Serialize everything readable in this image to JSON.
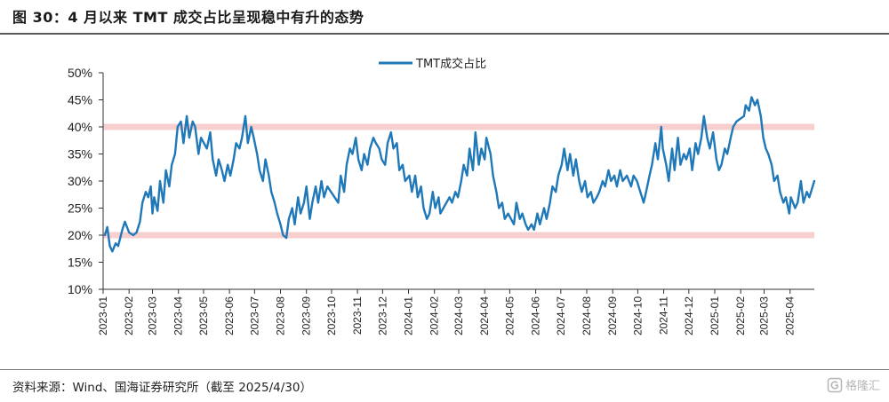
{
  "header": {
    "title": "图 30：4 月以来 TMT 成交占比呈现稳中有升的态势"
  },
  "footer": {
    "source": "资料来源：Wind、国海证券研究所（截至 2025/4/30）",
    "watermark": "格隆汇",
    "watermark_icon": "gelonghui-logo-icon"
  },
  "chart_data": {
    "type": "line",
    "title": "",
    "xlabel": "",
    "ylabel": "",
    "ylim": [
      0.1,
      0.5
    ],
    "y_ticks": [
      "10%",
      "15%",
      "20%",
      "25%",
      "30%",
      "35%",
      "40%",
      "45%",
      "50%"
    ],
    "y_tick_values": [
      0.1,
      0.15,
      0.2,
      0.25,
      0.3,
      0.35,
      0.4,
      0.45,
      0.5
    ],
    "x_range": [
      "2023-01-01",
      "2025-04-30"
    ],
    "x_ticks": [
      "2023-01",
      "2023-02",
      "2023-03",
      "2023-04",
      "2023-05",
      "2023-06",
      "2023-07",
      "2023-08",
      "2023-09",
      "2023-10",
      "2023-11",
      "2023-12",
      "2024-01",
      "2024-02",
      "2024-03",
      "2024-04",
      "2024-05",
      "2024-06",
      "2024-07",
      "2024-08",
      "2024-09",
      "2024-10",
      "2024-11",
      "2024-12",
      "2025-01",
      "2025-02",
      "2025-03",
      "2025-04"
    ],
    "grid": false,
    "legend_position": "top-center",
    "reference_lines": [
      {
        "value": 0.4,
        "color": "#f7cfcf"
      },
      {
        "value": 0.2,
        "color": "#f7cfcf"
      }
    ],
    "series": [
      {
        "name": "TMT成交占比",
        "color": "#1f78b8",
        "points": [
          [
            "2023-01-03",
            0.2
          ],
          [
            "2023-01-06",
            0.215
          ],
          [
            "2023-01-09",
            0.18
          ],
          [
            "2023-01-12",
            0.17
          ],
          [
            "2023-01-16",
            0.185
          ],
          [
            "2023-01-19",
            0.18
          ],
          [
            "2023-01-24",
            0.21
          ],
          [
            "2023-01-27",
            0.225
          ],
          [
            "2023-02-01",
            0.205
          ],
          [
            "2023-02-06",
            0.2
          ],
          [
            "2023-02-10",
            0.205
          ],
          [
            "2023-02-14",
            0.225
          ],
          [
            "2023-02-17",
            0.26
          ],
          [
            "2023-02-21",
            0.28
          ],
          [
            "2023-02-24",
            0.27
          ],
          [
            "2023-02-27",
            0.29
          ],
          [
            "2023-03-01",
            0.24
          ],
          [
            "2023-03-03",
            0.27
          ],
          [
            "2023-03-07",
            0.245
          ],
          [
            "2023-03-10",
            0.3
          ],
          [
            "2023-03-14",
            0.26
          ],
          [
            "2023-03-17",
            0.32
          ],
          [
            "2023-03-21",
            0.29
          ],
          [
            "2023-03-24",
            0.33
          ],
          [
            "2023-03-28",
            0.35
          ],
          [
            "2023-03-31",
            0.4
          ],
          [
            "2023-04-04",
            0.41
          ],
          [
            "2023-04-07",
            0.37
          ],
          [
            "2023-04-11",
            0.42
          ],
          [
            "2023-04-14",
            0.38
          ],
          [
            "2023-04-18",
            0.41
          ],
          [
            "2023-04-21",
            0.4
          ],
          [
            "2023-04-25",
            0.35
          ],
          [
            "2023-04-28",
            0.38
          ],
          [
            "2023-05-05",
            0.36
          ],
          [
            "2023-05-09",
            0.39
          ],
          [
            "2023-05-12",
            0.34
          ],
          [
            "2023-05-16",
            0.31
          ],
          [
            "2023-05-19",
            0.34
          ],
          [
            "2023-05-23",
            0.32
          ],
          [
            "2023-05-26",
            0.3
          ],
          [
            "2023-05-30",
            0.33
          ],
          [
            "2023-06-02",
            0.31
          ],
          [
            "2023-06-06",
            0.34
          ],
          [
            "2023-06-09",
            0.37
          ],
          [
            "2023-06-13",
            0.36
          ],
          [
            "2023-06-16",
            0.38
          ],
          [
            "2023-06-20",
            0.42
          ],
          [
            "2023-06-23",
            0.37
          ],
          [
            "2023-06-27",
            0.4
          ],
          [
            "2023-06-30",
            0.38
          ],
          [
            "2023-07-04",
            0.35
          ],
          [
            "2023-07-07",
            0.32
          ],
          [
            "2023-07-11",
            0.3
          ],
          [
            "2023-07-14",
            0.34
          ],
          [
            "2023-07-18",
            0.31
          ],
          [
            "2023-07-21",
            0.28
          ],
          [
            "2023-07-25",
            0.26
          ],
          [
            "2023-07-28",
            0.24
          ],
          [
            "2023-08-01",
            0.22
          ],
          [
            "2023-08-04",
            0.2
          ],
          [
            "2023-08-08",
            0.195
          ],
          [
            "2023-08-11",
            0.23
          ],
          [
            "2023-08-15",
            0.25
          ],
          [
            "2023-08-18",
            0.22
          ],
          [
            "2023-08-22",
            0.27
          ],
          [
            "2023-08-25",
            0.24
          ],
          [
            "2023-08-29",
            0.26
          ],
          [
            "2023-09-01",
            0.29
          ],
          [
            "2023-09-05",
            0.23
          ],
          [
            "2023-09-08",
            0.26
          ],
          [
            "2023-09-12",
            0.29
          ],
          [
            "2023-09-15",
            0.26
          ],
          [
            "2023-09-19",
            0.3
          ],
          [
            "2023-09-22",
            0.27
          ],
          [
            "2023-09-26",
            0.29
          ],
          [
            "2023-10-09",
            0.26
          ],
          [
            "2023-10-12",
            0.31
          ],
          [
            "2023-10-16",
            0.28
          ],
          [
            "2023-10-19",
            0.33
          ],
          [
            "2023-10-23",
            0.36
          ],
          [
            "2023-10-26",
            0.35
          ],
          [
            "2023-10-30",
            0.38
          ],
          [
            "2023-11-02",
            0.34
          ],
          [
            "2023-11-06",
            0.32
          ],
          [
            "2023-11-09",
            0.35
          ],
          [
            "2023-11-13",
            0.33
          ],
          [
            "2023-11-16",
            0.36
          ],
          [
            "2023-11-20",
            0.38
          ],
          [
            "2023-11-23",
            0.37
          ],
          [
            "2023-11-27",
            0.36
          ],
          [
            "2023-11-30",
            0.34
          ],
          [
            "2023-12-04",
            0.33
          ],
          [
            "2023-12-07",
            0.37
          ],
          [
            "2023-12-11",
            0.39
          ],
          [
            "2023-12-14",
            0.36
          ],
          [
            "2023-12-18",
            0.37
          ],
          [
            "2023-12-21",
            0.32
          ],
          [
            "2023-12-25",
            0.33
          ],
          [
            "2023-12-28",
            0.3
          ],
          [
            "2024-01-02",
            0.31
          ],
          [
            "2024-01-05",
            0.28
          ],
          [
            "2024-01-09",
            0.31
          ],
          [
            "2024-01-12",
            0.27
          ],
          [
            "2024-01-16",
            0.29
          ],
          [
            "2024-01-19",
            0.25
          ],
          [
            "2024-01-23",
            0.23
          ],
          [
            "2024-01-26",
            0.24
          ],
          [
            "2024-01-30",
            0.28
          ],
          [
            "2024-02-02",
            0.25
          ],
          [
            "2024-02-06",
            0.27
          ],
          [
            "2024-02-08",
            0.24
          ],
          [
            "2024-02-19",
            0.27
          ],
          [
            "2024-02-22",
            0.26
          ],
          [
            "2024-02-26",
            0.28
          ],
          [
            "2024-02-29",
            0.27
          ],
          [
            "2024-03-04",
            0.3
          ],
          [
            "2024-03-07",
            0.33
          ],
          [
            "2024-03-11",
            0.31
          ],
          [
            "2024-03-14",
            0.36
          ],
          [
            "2024-03-18",
            0.32
          ],
          [
            "2024-03-21",
            0.39
          ],
          [
            "2024-03-25",
            0.33
          ],
          [
            "2024-03-28",
            0.36
          ],
          [
            "2024-04-01",
            0.34
          ],
          [
            "2024-04-03",
            0.38
          ],
          [
            "2024-04-08",
            0.35
          ],
          [
            "2024-04-11",
            0.31
          ],
          [
            "2024-04-15",
            0.28
          ],
          [
            "2024-04-18",
            0.25
          ],
          [
            "2024-04-22",
            0.26
          ],
          [
            "2024-04-25",
            0.23
          ],
          [
            "2024-04-29",
            0.24
          ],
          [
            "2024-05-06",
            0.22
          ],
          [
            "2024-05-09",
            0.26
          ],
          [
            "2024-05-13",
            0.23
          ],
          [
            "2024-05-16",
            0.24
          ],
          [
            "2024-05-20",
            0.22
          ],
          [
            "2024-05-23",
            0.21
          ],
          [
            "2024-05-27",
            0.22
          ],
          [
            "2024-05-30",
            0.21
          ],
          [
            "2024-06-03",
            0.24
          ],
          [
            "2024-06-06",
            0.22
          ],
          [
            "2024-06-11",
            0.25
          ],
          [
            "2024-06-14",
            0.23
          ],
          [
            "2024-06-18",
            0.26
          ],
          [
            "2024-06-21",
            0.29
          ],
          [
            "2024-06-25",
            0.28
          ],
          [
            "2024-06-28",
            0.31
          ],
          [
            "2024-07-02",
            0.33
          ],
          [
            "2024-07-05",
            0.36
          ],
          [
            "2024-07-09",
            0.32
          ],
          [
            "2024-07-12",
            0.35
          ],
          [
            "2024-07-16",
            0.31
          ],
          [
            "2024-07-19",
            0.34
          ],
          [
            "2024-07-23",
            0.3
          ],
          [
            "2024-07-26",
            0.28
          ],
          [
            "2024-07-30",
            0.3
          ],
          [
            "2024-08-02",
            0.27
          ],
          [
            "2024-08-06",
            0.28
          ],
          [
            "2024-08-09",
            0.26
          ],
          [
            "2024-08-13",
            0.27
          ],
          [
            "2024-08-16",
            0.28
          ],
          [
            "2024-08-20",
            0.3
          ],
          [
            "2024-08-23",
            0.29
          ],
          [
            "2024-08-27",
            0.32
          ],
          [
            "2024-08-30",
            0.3
          ],
          [
            "2024-09-03",
            0.31
          ],
          [
            "2024-09-06",
            0.29
          ],
          [
            "2024-09-10",
            0.32
          ],
          [
            "2024-09-13",
            0.3
          ],
          [
            "2024-09-18",
            0.31
          ],
          [
            "2024-09-23",
            0.29
          ],
          [
            "2024-09-26",
            0.31
          ],
          [
            "2024-09-30",
            0.3
          ],
          [
            "2024-10-08",
            0.26
          ],
          [
            "2024-10-11",
            0.28
          ],
          [
            "2024-10-15",
            0.31
          ],
          [
            "2024-10-18",
            0.33
          ],
          [
            "2024-10-22",
            0.37
          ],
          [
            "2024-10-25",
            0.34
          ],
          [
            "2024-10-29",
            0.4
          ],
          [
            "2024-10-31",
            0.36
          ],
          [
            "2024-11-04",
            0.33
          ],
          [
            "2024-11-07",
            0.3
          ],
          [
            "2024-11-11",
            0.36
          ],
          [
            "2024-11-14",
            0.32
          ],
          [
            "2024-11-18",
            0.38
          ],
          [
            "2024-11-21",
            0.33
          ],
          [
            "2024-11-25",
            0.35
          ],
          [
            "2024-11-28",
            0.34
          ],
          [
            "2024-12-02",
            0.36
          ],
          [
            "2024-12-05",
            0.32
          ],
          [
            "2024-12-09",
            0.37
          ],
          [
            "2024-12-12",
            0.35
          ],
          [
            "2024-12-16",
            0.38
          ],
          [
            "2024-12-19",
            0.42
          ],
          [
            "2024-12-23",
            0.38
          ],
          [
            "2024-12-26",
            0.36
          ],
          [
            "2024-12-30",
            0.39
          ],
          [
            "2025-01-03",
            0.34
          ],
          [
            "2025-01-06",
            0.32
          ],
          [
            "2025-01-09",
            0.33
          ],
          [
            "2025-01-13",
            0.36
          ],
          [
            "2025-01-16",
            0.35
          ],
          [
            "2025-01-20",
            0.38
          ],
          [
            "2025-01-23",
            0.4
          ],
          [
            "2025-01-27",
            0.41
          ],
          [
            "2025-02-05",
            0.42
          ],
          [
            "2025-02-07",
            0.44
          ],
          [
            "2025-02-11",
            0.43
          ],
          [
            "2025-02-14",
            0.455
          ],
          [
            "2025-02-18",
            0.44
          ],
          [
            "2025-02-21",
            0.45
          ],
          [
            "2025-02-25",
            0.42
          ],
          [
            "2025-02-28",
            0.38
          ],
          [
            "2025-03-03",
            0.36
          ],
          [
            "2025-03-06",
            0.35
          ],
          [
            "2025-03-10",
            0.33
          ],
          [
            "2025-03-13",
            0.3
          ],
          [
            "2025-03-17",
            0.31
          ],
          [
            "2025-03-20",
            0.28
          ],
          [
            "2025-03-24",
            0.26
          ],
          [
            "2025-03-27",
            0.27
          ],
          [
            "2025-03-31",
            0.24
          ],
          [
            "2025-04-02",
            0.27
          ],
          [
            "2025-04-07",
            0.25
          ],
          [
            "2025-04-10",
            0.26
          ],
          [
            "2025-04-14",
            0.3
          ],
          [
            "2025-04-17",
            0.26
          ],
          [
            "2025-04-21",
            0.28
          ],
          [
            "2025-04-24",
            0.27
          ],
          [
            "2025-04-28",
            0.29
          ],
          [
            "2025-04-30",
            0.3
          ]
        ]
      }
    ]
  }
}
